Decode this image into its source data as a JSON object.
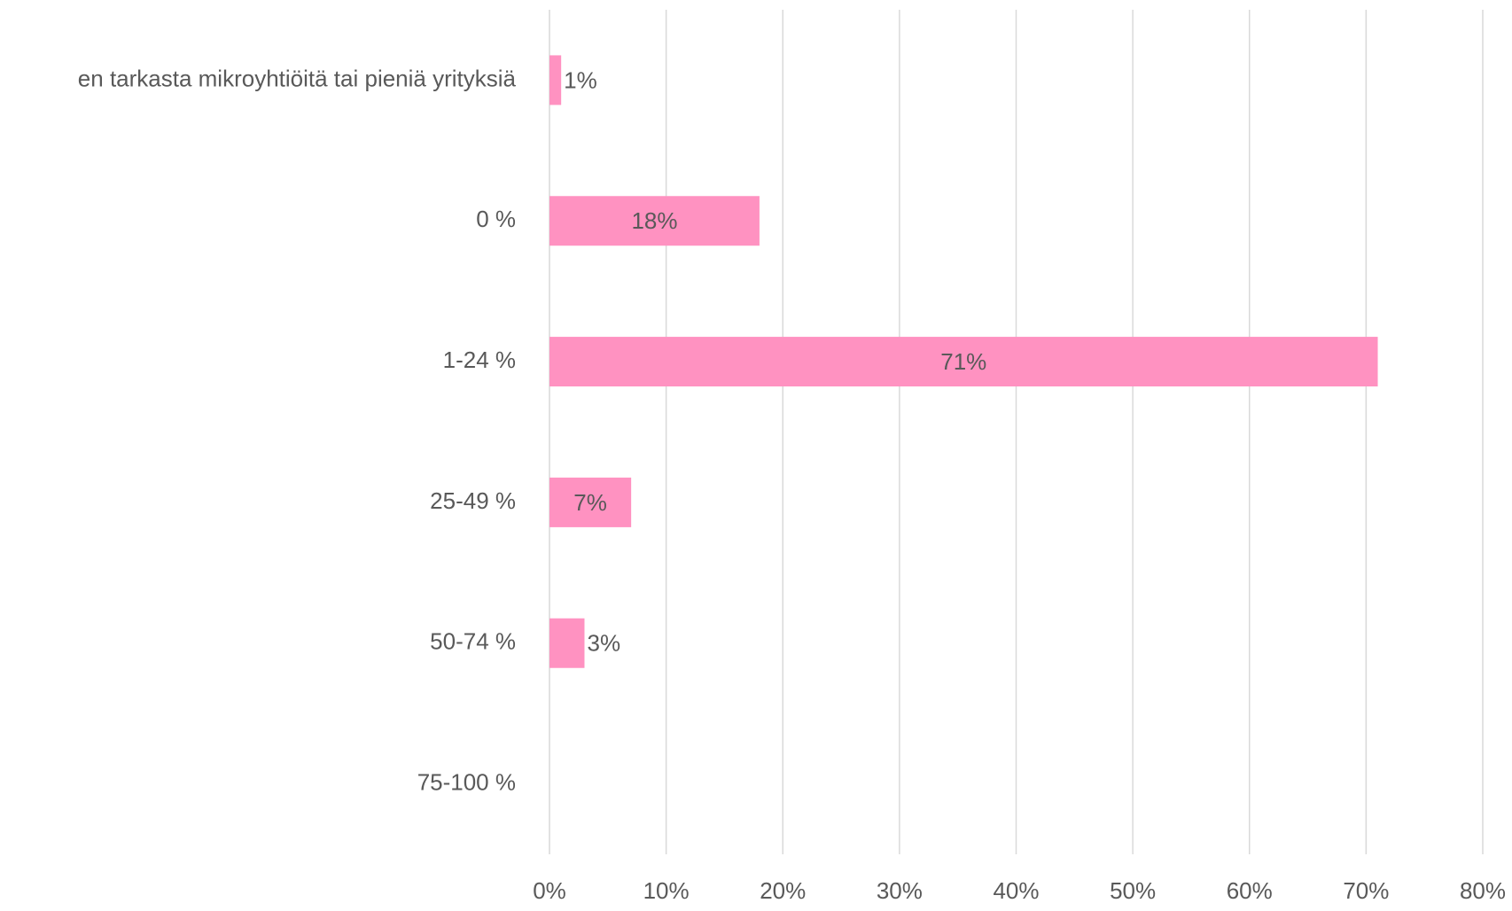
{
  "chart_data": {
    "type": "bar",
    "orientation": "horizontal",
    "categories": [
      "en tarkasta mikroyhtiöitä tai pieniä yrityksiä",
      "0 %",
      "1-24 %",
      "25-49 %",
      "50-74 %",
      "75-100 %"
    ],
    "values": [
      1,
      18,
      71,
      7,
      3,
      null
    ],
    "value_labels": [
      "1%",
      "18%",
      "71%",
      "7%",
      "3%",
      null
    ],
    "color": "#ff92c1",
    "xlim": [
      0,
      80
    ],
    "xticks": [
      {
        "value": 0,
        "label": "0%"
      },
      {
        "value": 10,
        "label": "10%"
      },
      {
        "value": 20,
        "label": "20%"
      },
      {
        "value": 30,
        "label": "30%"
      },
      {
        "value": 40,
        "label": "40%"
      },
      {
        "value": 50,
        "label": "50%"
      },
      {
        "value": 60,
        "label": "60%"
      },
      {
        "value": 70,
        "label": "70%"
      },
      {
        "value": 80,
        "label": "80%"
      }
    ],
    "grid": true
  }
}
